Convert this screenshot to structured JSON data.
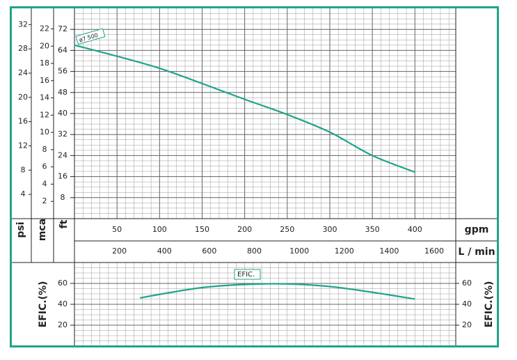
{
  "chart_data": [
    {
      "type": "line",
      "ylabel": "ft",
      "xlabel": "gpm",
      "x2label": "L / min",
      "xlim": [
        0,
        448
      ],
      "xticks": [
        50,
        100,
        150,
        200,
        250,
        300,
        350,
        400
      ],
      "x2lim": [
        0,
        1696
      ],
      "x2ticks": [
        200,
        400,
        600,
        800,
        1000,
        1200,
        1400,
        1600
      ],
      "ylim": [
        0,
        80
      ],
      "yticks": [
        8,
        16,
        24,
        32,
        40,
        48,
        56,
        64,
        72
      ],
      "psi": {
        "label": "psi",
        "lim": [
          0,
          34.68
        ],
        "ticks": [
          4,
          8,
          12,
          16,
          20,
          24,
          28,
          32
        ]
      },
      "mca": {
        "label": "mca",
        "lim": [
          0,
          24.38
        ],
        "ticks": [
          2,
          4,
          6,
          8,
          10,
          12,
          14,
          16,
          18,
          20,
          22
        ]
      },
      "grid": true,
      "series": [
        {
          "name": "ø7 500",
          "color": "#1ea58a",
          "x": [
            0,
            50,
            100,
            150,
            200,
            250,
            300,
            350,
            400
          ],
          "values": [
            66,
            61.8,
            57.2,
            51.4,
            45.4,
            39.6,
            32.9,
            24,
            17.7
          ]
        }
      ]
    },
    {
      "type": "line",
      "ylabel": "EFIC.(%)",
      "xlim": [
        0,
        448
      ],
      "ylim": [
        0,
        80
      ],
      "yticks": [
        20,
        40,
        60
      ],
      "grid": true,
      "series": [
        {
          "name": "EFIC.",
          "color": "#1ea58a",
          "x": [
            77,
            100,
            150,
            200,
            250,
            300,
            350,
            400
          ],
          "values": [
            46,
            49.5,
            56,
            59,
            59.5,
            57,
            51.5,
            45
          ]
        }
      ]
    }
  ]
}
